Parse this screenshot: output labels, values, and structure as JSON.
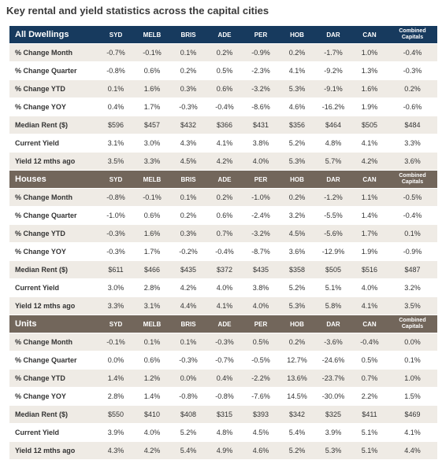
{
  "title": "Key rental and yield statistics across the capital cities",
  "sections": [
    {
      "header": [
        "All Dwellings",
        "SYD",
        "MELB",
        "BRIS",
        "ADE",
        "PER",
        "HOB",
        "DAR",
        "CAN",
        "Combined Capitals"
      ],
      "rows": [
        [
          "% Change Month",
          "-0.7%",
          "-0.1%",
          "0.1%",
          "0.2%",
          "-0.9%",
          "0.2%",
          "-1.7%",
          "1.0%",
          "-0.4%"
        ],
        [
          "% Change Quarter",
          "-0.8%",
          "0.6%",
          "0.2%",
          "0.5%",
          "-2.3%",
          "4.1%",
          "-9.2%",
          "1.3%",
          "-0.3%"
        ],
        [
          "% Change YTD",
          "0.1%",
          "1.6%",
          "0.3%",
          "0.6%",
          "-3.2%",
          "5.3%",
          "-9.1%",
          "1.6%",
          "0.2%"
        ],
        [
          "% Change YOY",
          "0.4%",
          "1.7%",
          "-0.3%",
          "-0.4%",
          "-8.6%",
          "4.6%",
          "-16.2%",
          "1.9%",
          "-0.6%"
        ],
        [
          "Median Rent ($)",
          "$596",
          "$457",
          "$432",
          "$366",
          "$431",
          "$356",
          "$464",
          "$505",
          "$484"
        ],
        [
          "Current Yield",
          "3.1%",
          "3.0%",
          "4.3%",
          "4.1%",
          "3.8%",
          "5.2%",
          "4.8%",
          "4.1%",
          "3.3%"
        ],
        [
          "Yield 12 mths ago",
          "3.5%",
          "3.3%",
          "4.5%",
          "4.2%",
          "4.0%",
          "5.3%",
          "5.7%",
          "4.2%",
          "3.6%"
        ]
      ]
    },
    {
      "header": [
        "Houses",
        "SYD",
        "MELB",
        "BRIS",
        "ADE",
        "PER",
        "HOB",
        "DAR",
        "CAN",
        "Combined Capitals"
      ],
      "rows": [
        [
          "% Change Month",
          "-0.8%",
          "-0.1%",
          "0.1%",
          "0.2%",
          "-1.0%",
          "0.2%",
          "-1.2%",
          "1.1%",
          "-0.5%"
        ],
        [
          "% Change Quarter",
          "-1.0%",
          "0.6%",
          "0.2%",
          "0.6%",
          "-2.4%",
          "3.2%",
          "-5.5%",
          "1.4%",
          "-0.4%"
        ],
        [
          "% Change YTD",
          "-0.3%",
          "1.6%",
          "0.3%",
          "0.7%",
          "-3.2%",
          "4.5%",
          "-5.6%",
          "1.7%",
          "0.1%"
        ],
        [
          "% Change YOY",
          "-0.3%",
          "1.7%",
          "-0.2%",
          "-0.4%",
          "-8.7%",
          "3.6%",
          "-12.9%",
          "1.9%",
          "-0.9%"
        ],
        [
          "Median Rent ($)",
          "$611",
          "$466",
          "$435",
          "$372",
          "$435",
          "$358",
          "$505",
          "$516",
          "$487"
        ],
        [
          "Current Yield",
          "3.0%",
          "2.8%",
          "4.2%",
          "4.0%",
          "3.8%",
          "5.2%",
          "5.1%",
          "4.0%",
          "3.2%"
        ],
        [
          "Yield 12 mths ago",
          "3.3%",
          "3.1%",
          "4.4%",
          "4.1%",
          "4.0%",
          "5.3%",
          "5.8%",
          "4.1%",
          "3.5%"
        ]
      ]
    },
    {
      "header": [
        "Units",
        "SYD",
        "MELB",
        "BRIS",
        "ADE",
        "PER",
        "HOB",
        "DAR",
        "CAN",
        "Combined Capitals"
      ],
      "rows": [
        [
          "% Change Month",
          "-0.1%",
          "0.1%",
          "0.1%",
          "-0.3%",
          "0.5%",
          "0.2%",
          "-3.6%",
          "-0.4%",
          "0.0%"
        ],
        [
          "% Change Quarter",
          "0.0%",
          "0.6%",
          "-0.3%",
          "-0.7%",
          "-0.5%",
          "12.7%",
          "-24.6%",
          "0.5%",
          "0.1%"
        ],
        [
          "% Change YTD",
          "1.4%",
          "1.2%",
          "0.0%",
          "0.4%",
          "-2.2%",
          "13.6%",
          "-23.7%",
          "0.7%",
          "1.0%"
        ],
        [
          "% Change YOY",
          "2.8%",
          "1.4%",
          "-0.8%",
          "-0.8%",
          "-7.6%",
          "14.5%",
          "-30.0%",
          "2.2%",
          "1.5%"
        ],
        [
          "Median Rent ($)",
          "$550",
          "$410",
          "$408",
          "$315",
          "$393",
          "$342",
          "$325",
          "$411",
          "$469"
        ],
        [
          "Current Yield",
          "3.9%",
          "4.0%",
          "5.2%",
          "4.8%",
          "4.5%",
          "5.4%",
          "3.9%",
          "5.1%",
          "4.1%"
        ],
        [
          "Yield 12 mths ago",
          "4.3%",
          "4.2%",
          "5.4%",
          "4.9%",
          "4.6%",
          "5.2%",
          "5.3%",
          "5.1%",
          "4.4%"
        ]
      ]
    }
  ]
}
